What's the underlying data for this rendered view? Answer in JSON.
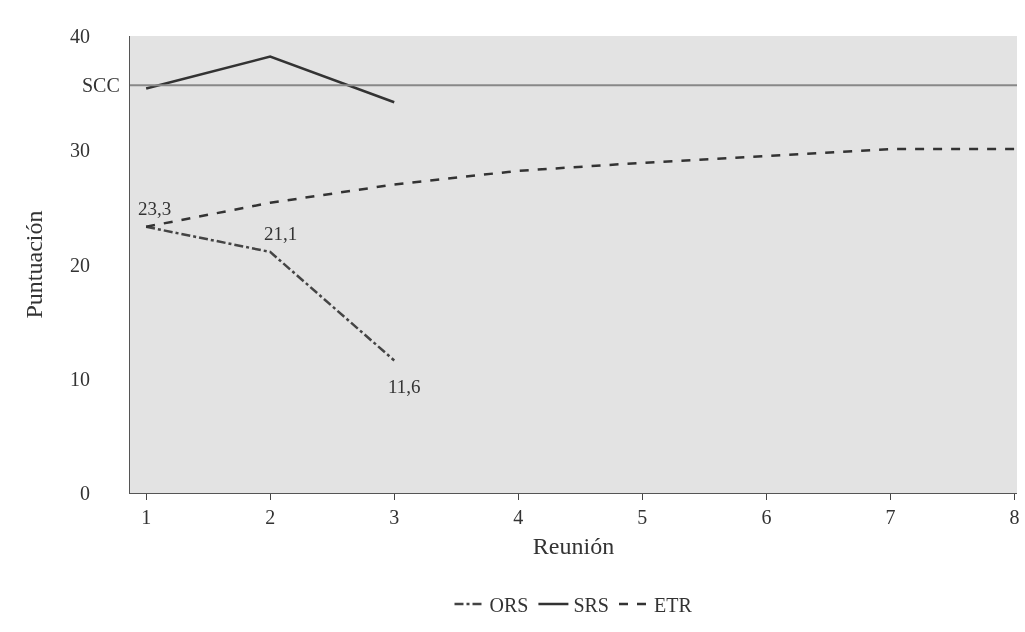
{
  "chart_data": {
    "type": "line",
    "xlabel": "Reunión",
    "ylabel": "Puntuación",
    "x": [
      1,
      2,
      3,
      4,
      5,
      6,
      7,
      8
    ],
    "series": [
      {
        "name": "ORS",
        "color": "#444444",
        "line_style": "dashdot",
        "values": [
          23.3,
          21.1,
          11.6,
          null,
          null,
          null,
          null,
          null
        ]
      },
      {
        "name": "SRS",
        "color": "#333333",
        "line_style": "solid",
        "values": [
          35.4,
          38.2,
          34.2,
          null,
          null,
          null,
          null,
          null
        ]
      },
      {
        "name": "ETR",
        "color": "#333333",
        "line_style": "dashed",
        "values": [
          23.3,
          25.4,
          27.0,
          28.2,
          28.9,
          29.5,
          30.1,
          30.1
        ]
      }
    ],
    "ref_lines": [
      {
        "axis": "y",
        "value": 35.7,
        "label": "SCC",
        "color": "#888888"
      }
    ],
    "annotations": [
      {
        "text": "23,3",
        "x": 1,
        "y": 23.3
      },
      {
        "text": "21,1",
        "x": 2,
        "y": 21.1
      },
      {
        "text": "11,6",
        "x": 3,
        "y": 11.6
      }
    ],
    "xlim": [
      0.87,
      8.02
    ],
    "xticks": [
      1,
      2,
      3,
      4,
      5,
      6,
      7,
      8
    ],
    "ylim": [
      0,
      40
    ],
    "yticks": [
      0,
      10,
      20,
      30,
      40
    ],
    "grid": false,
    "legend": "bottom",
    "marker": "none"
  }
}
